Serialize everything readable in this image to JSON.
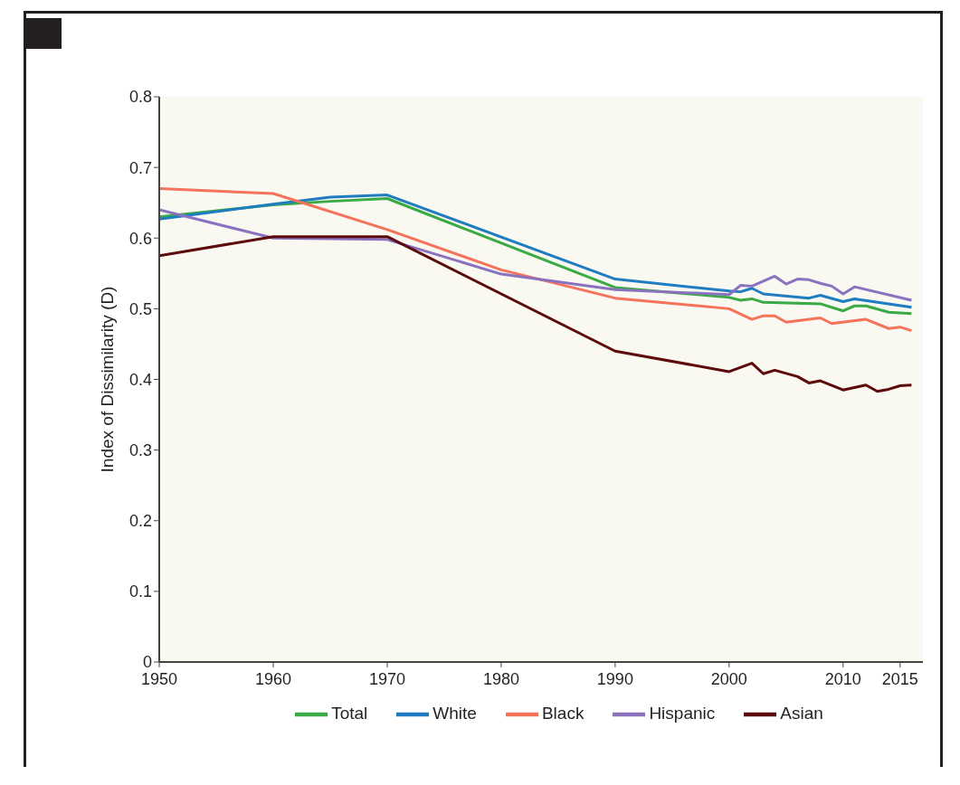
{
  "chart_data": {
    "type": "line",
    "ylabel": "Index of Dissimilarity (D)",
    "xlim": [
      1950,
      2017
    ],
    "xticks": [
      1950,
      1960,
      1970,
      1980,
      1990,
      2000,
      2010,
      2015
    ],
    "ylim": [
      0,
      0.8
    ],
    "yticks": [
      0,
      0.1,
      0.2,
      0.3,
      0.4,
      0.5,
      0.6,
      0.7,
      0.8
    ],
    "grid": false,
    "legend": "bottom",
    "marker": "none",
    "line_style": "solid",
    "series": [
      {
        "name": "Total",
        "color": "#3aaa45",
        "x": [
          1950,
          1960,
          1965,
          1970,
          1990,
          2000,
          2001,
          2002,
          2003,
          2008,
          2010,
          2011,
          2012,
          2014,
          2016
        ],
        "values": [
          0.63,
          0.647,
          0.652,
          0.656,
          0.53,
          0.516,
          0.512,
          0.514,
          0.509,
          0.507,
          0.497,
          0.504,
          0.504,
          0.495,
          0.493
        ]
      },
      {
        "name": "White",
        "color": "#1f7cc1",
        "x": [
          1950,
          1960,
          1965,
          1970,
          1990,
          2000,
          2001,
          2002,
          2003,
          2007,
          2008,
          2010,
          2011,
          2016
        ],
        "values": [
          0.627,
          0.648,
          0.658,
          0.661,
          0.542,
          0.525,
          0.524,
          0.529,
          0.521,
          0.515,
          0.519,
          0.51,
          0.514,
          0.502
        ]
      },
      {
        "name": "Black",
        "color": "#f4735a",
        "x": [
          1950,
          1960,
          1970,
          1980,
          1990,
          2000,
          2002,
          2003,
          2004,
          2005,
          2008,
          2009,
          2012,
          2014,
          2015,
          2016
        ],
        "values": [
          0.67,
          0.663,
          0.612,
          0.555,
          0.515,
          0.5,
          0.485,
          0.49,
          0.49,
          0.481,
          0.487,
          0.479,
          0.485,
          0.472,
          0.474,
          0.469
        ]
      },
      {
        "name": "Hispanic",
        "color": "#8a72c0",
        "x": [
          1950,
          1960,
          1970,
          1980,
          1990,
          2000,
          2001,
          2002,
          2004,
          2005,
          2006,
          2007,
          2008,
          2009,
          2010,
          2011,
          2016
        ],
        "values": [
          0.64,
          0.6,
          0.598,
          0.549,
          0.527,
          0.52,
          0.533,
          0.532,
          0.546,
          0.535,
          0.542,
          0.541,
          0.536,
          0.532,
          0.521,
          0.531,
          0.512
        ]
      },
      {
        "name": "Asian",
        "color": "#5c0a0a",
        "x": [
          1950,
          1960,
          1970,
          1990,
          2000,
          2002,
          2003,
          2004,
          2006,
          2007,
          2008,
          2010,
          2012,
          2013,
          2014,
          2015,
          2016
        ],
        "values": [
          0.575,
          0.602,
          0.602,
          0.44,
          0.411,
          0.423,
          0.408,
          0.413,
          0.404,
          0.395,
          0.398,
          0.385,
          0.392,
          0.383,
          0.386,
          0.391,
          0.392
        ]
      }
    ]
  }
}
